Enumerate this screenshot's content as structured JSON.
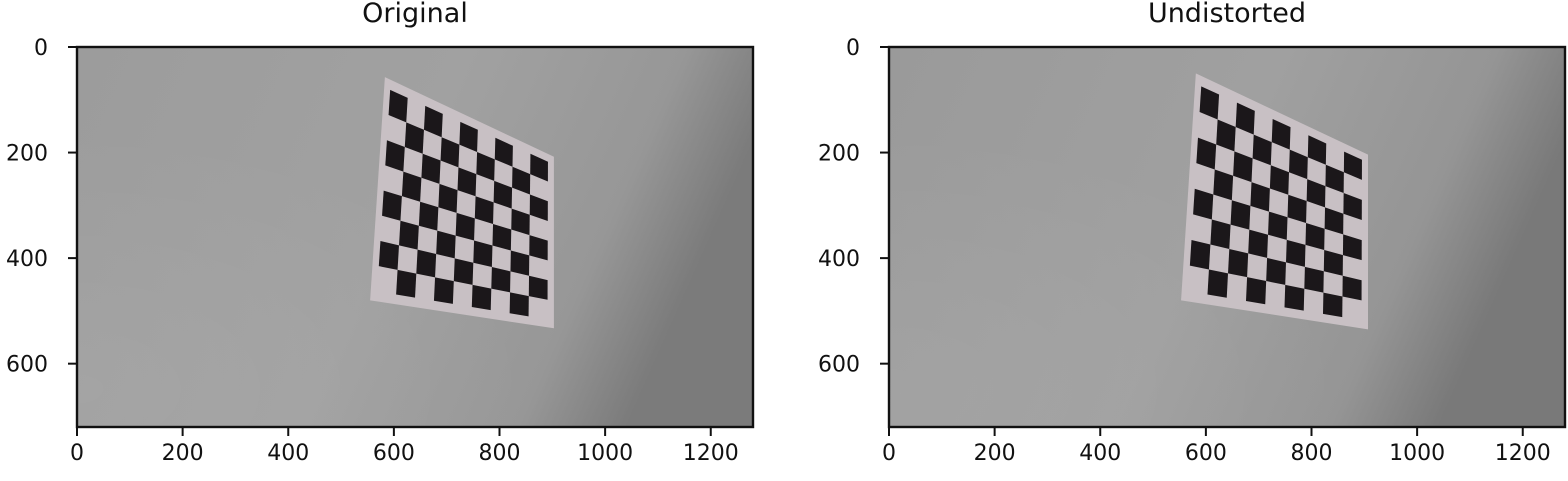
{
  "chart_data": [
    {
      "type": "image",
      "title": "Original",
      "image_size": [
        1280,
        720
      ],
      "xlim": [
        0,
        1280
      ],
      "ylim": [
        720,
        0
      ],
      "xticks": [
        0,
        200,
        400,
        600,
        800,
        1000,
        1200
      ],
      "yticks": [
        0,
        200,
        400,
        600
      ],
      "xlabel": "",
      "ylabel": "",
      "grid": false,
      "content": "checkerboard calibration target on a grey wall",
      "board": {
        "corners": [
          [
            583,
            57
          ],
          [
            903,
            208
          ],
          [
            903,
            533
          ],
          [
            555,
            480
          ]
        ],
        "squares_x": 9,
        "squares_y": 8
      }
    },
    {
      "type": "image",
      "title": "Undistorted",
      "image_size": [
        1280,
        720
      ],
      "xlim": [
        0,
        1280
      ],
      "ylim": [
        720,
        0
      ],
      "xticks": [
        0,
        200,
        400,
        600,
        800,
        1000,
        1200
      ],
      "yticks": [
        0,
        200,
        400,
        600
      ],
      "xlabel": "",
      "ylabel": "",
      "grid": false,
      "content": "checkerboard calibration target on a grey wall",
      "board": {
        "corners": [
          [
            581,
            50
          ],
          [
            907,
            204
          ],
          [
            907,
            535
          ],
          [
            553,
            480
          ]
        ],
        "squares_x": 9,
        "squares_y": 8
      }
    }
  ]
}
